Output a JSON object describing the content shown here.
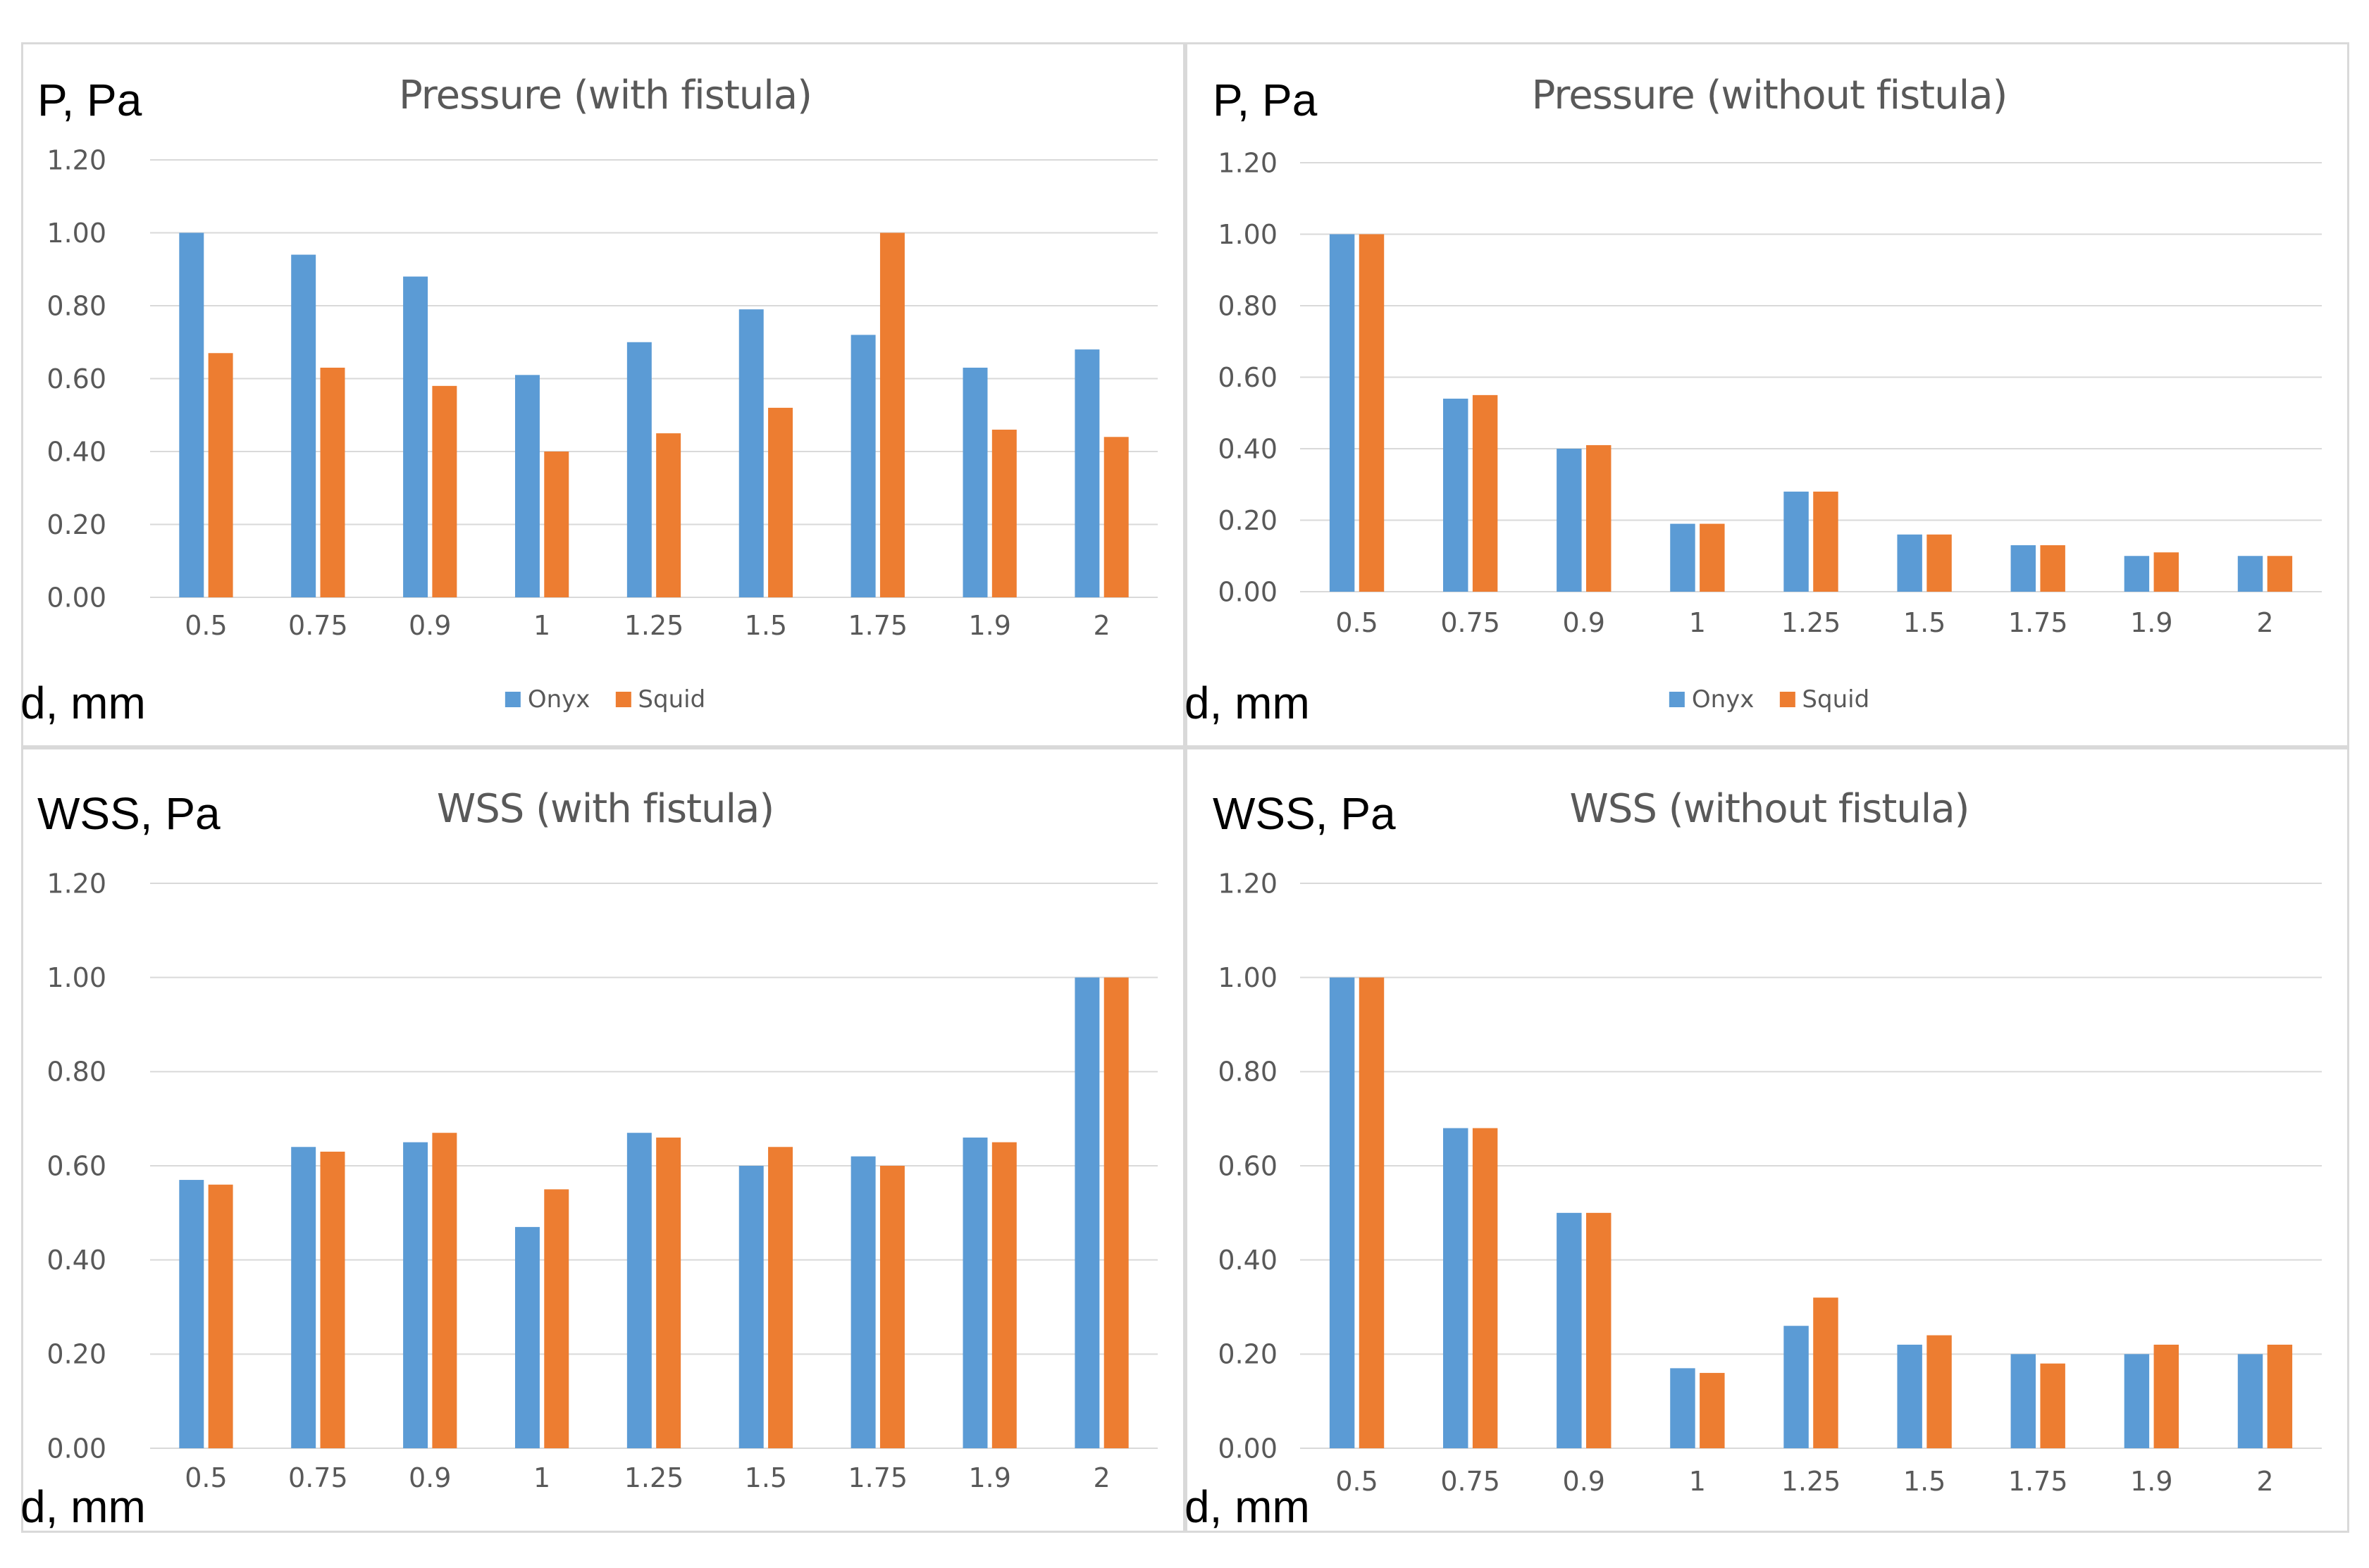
{
  "colors": {
    "onyx": "#5b9bd5",
    "squid": "#ed7d31",
    "grid": "#d9d9d9",
    "axis_text": "#595959"
  },
  "legend": [
    "Onyx",
    "Squid"
  ],
  "chart_data": [
    {
      "type": "bar",
      "title": "Pressure (with fistula)",
      "ylabel": "P, Pa",
      "xlabel": "d, mm",
      "categories": [
        "0.5",
        "0.75",
        "0.9",
        "1",
        "1.25",
        "1.5",
        "1.75",
        "1.9",
        "2"
      ],
      "ylim": [
        0,
        1.2
      ],
      "yticks": [
        "0.00",
        "0.20",
        "0.40",
        "0.60",
        "0.80",
        "1.00",
        "1.20"
      ],
      "series": [
        {
          "name": "Onyx",
          "values": [
            1.0,
            0.94,
            0.88,
            0.61,
            0.7,
            0.79,
            0.72,
            0.63,
            0.68
          ]
        },
        {
          "name": "Squid",
          "values": [
            0.67,
            0.63,
            0.58,
            0.4,
            0.45,
            0.52,
            1.0,
            0.46,
            0.44
          ]
        }
      ],
      "show_legend": true
    },
    {
      "type": "bar",
      "title": "Pressure (without fistula)",
      "ylabel": "P, Pa",
      "xlabel": "d, mm",
      "categories": [
        "0.5",
        "0.75",
        "0.9",
        "1",
        "1.25",
        "1.5",
        "1.75",
        "1.9",
        "2"
      ],
      "ylim": [
        0,
        1.2
      ],
      "yticks": [
        "0.00",
        "0.20",
        "0.40",
        "0.60",
        "0.80",
        "1.00",
        "1.20"
      ],
      "series": [
        {
          "name": "Onyx",
          "values": [
            1.0,
            0.54,
            0.4,
            0.19,
            0.28,
            0.16,
            0.13,
            0.1,
            0.1
          ]
        },
        {
          "name": "Squid",
          "values": [
            1.0,
            0.55,
            0.41,
            0.19,
            0.28,
            0.16,
            0.13,
            0.11,
            0.1
          ]
        }
      ],
      "show_legend": true
    },
    {
      "type": "bar",
      "title": "WSS (with fistula)",
      "ylabel": "WSS, Pa",
      "xlabel": "d, mm",
      "categories": [
        "0.5",
        "0.75",
        "0.9",
        "1",
        "1.25",
        "1.5",
        "1.75",
        "1.9",
        "2"
      ],
      "ylim": [
        0,
        1.2
      ],
      "yticks": [
        "0.00",
        "0.20",
        "0.40",
        "0.60",
        "0.80",
        "1.00",
        "1.20"
      ],
      "series": [
        {
          "name": "Onyx",
          "values": [
            0.57,
            0.64,
            0.65,
            0.47,
            0.67,
            0.6,
            0.62,
            0.66,
            1.0
          ]
        },
        {
          "name": "Squid",
          "values": [
            0.56,
            0.63,
            0.67,
            0.55,
            0.66,
            0.64,
            0.6,
            0.65,
            1.0
          ]
        }
      ],
      "show_legend": false
    },
    {
      "type": "bar",
      "title": "WSS (without fistula)",
      "ylabel": "WSS, Pa",
      "xlabel": "d, mm",
      "categories": [
        "0.5",
        "0.75",
        "0.9",
        "1",
        "1.25",
        "1.5",
        "1.75",
        "1.9",
        "2"
      ],
      "ylim": [
        0,
        1.2
      ],
      "yticks": [
        "0.00",
        "0.20",
        "0.40",
        "0.60",
        "0.80",
        "1.00",
        "1.20"
      ],
      "series": [
        {
          "name": "Onyx",
          "values": [
            1.0,
            0.68,
            0.5,
            0.17,
            0.26,
            0.22,
            0.2,
            0.2,
            0.2
          ]
        },
        {
          "name": "Squid",
          "values": [
            1.0,
            0.68,
            0.5,
            0.16,
            0.32,
            0.24,
            0.18,
            0.22,
            0.22
          ]
        }
      ],
      "show_legend": false
    }
  ]
}
